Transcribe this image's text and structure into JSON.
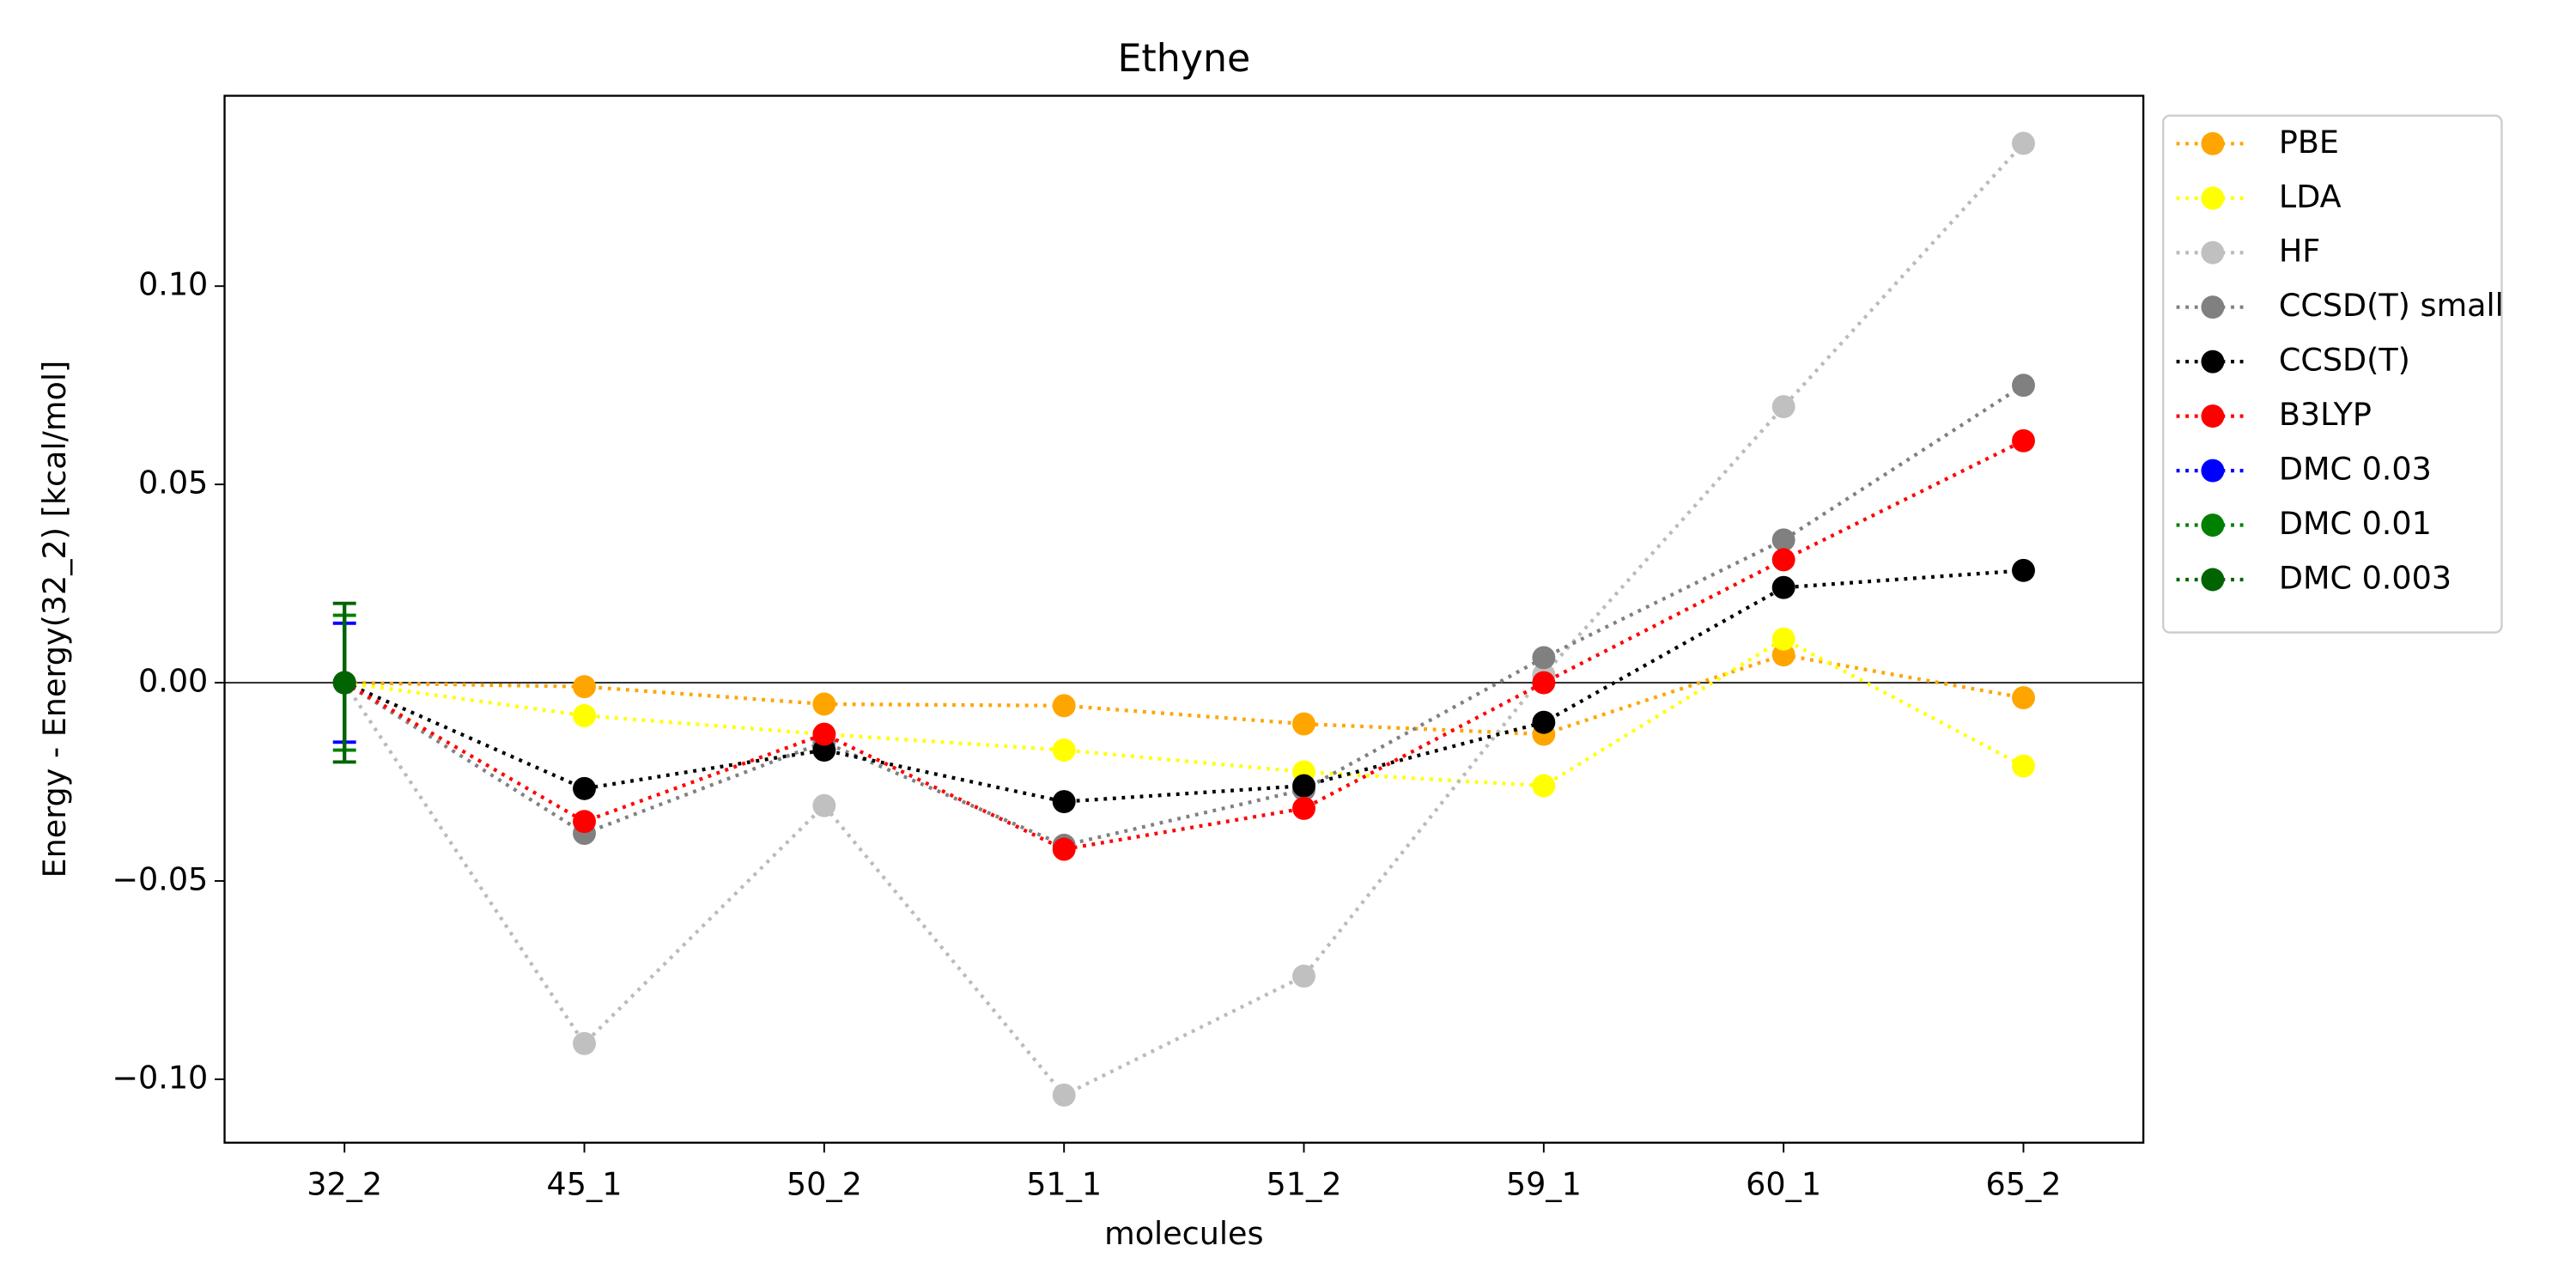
{
  "chart_data": {
    "type": "line",
    "title": "Ethyne",
    "xlabel": "molecules",
    "ylabel": "Energy - Energy(32_2) [kcal/mol]",
    "categories": [
      "32_2",
      "45_1",
      "50_2",
      "51_1",
      "51_2",
      "59_1",
      "60_1",
      "65_2"
    ],
    "ylim": [
      -0.116,
      0.148
    ],
    "yticks": [
      {
        "value": -0.1,
        "label": "−0.10"
      },
      {
        "value": -0.05,
        "label": "−0.05"
      },
      {
        "value": 0,
        "label": "0.00"
      },
      {
        "value": 0.05,
        "label": "0.05"
      },
      {
        "value": 0.1,
        "label": "0.10"
      }
    ],
    "hline": 0,
    "legend": "upper left outside",
    "series": [
      {
        "name": "PBE",
        "color": "#ffa500",
        "values": [
          0,
          -0.001,
          -0.0054,
          -0.0058,
          -0.0104,
          -0.013,
          0.007,
          -0.0038
        ]
      },
      {
        "name": "LDA",
        "color": "#ffff00",
        "values": [
          0,
          -0.0083,
          -0.013,
          -0.017,
          -0.0225,
          -0.026,
          0.011,
          -0.021
        ]
      },
      {
        "name": "HF",
        "color": "#c0c0c0",
        "values": [
          0,
          -0.091,
          -0.031,
          -0.104,
          -0.074,
          0.002,
          0.0696,
          0.136
        ]
      },
      {
        "name": "CCSD(T) small",
        "color": "#808080",
        "values": [
          0,
          -0.038,
          -0.015,
          -0.041,
          -0.027,
          0.0063,
          0.036,
          0.075
        ]
      },
      {
        "name": "CCSD(T)",
        "color": "#000000",
        "values": [
          0,
          -0.0267,
          -0.017,
          -0.03,
          -0.026,
          -0.01,
          0.024,
          0.0283
        ]
      },
      {
        "name": "B3LYP",
        "color": "#ff0000",
        "values": [
          0,
          -0.035,
          -0.013,
          -0.042,
          -0.0317,
          0,
          0.031,
          0.061
        ]
      },
      {
        "name": "DMC 0.03",
        "color": "#0000ff",
        "values": [
          0,
          null,
          null,
          null,
          null,
          null,
          null,
          null
        ],
        "errors": [
          0.015,
          null,
          null,
          null,
          null,
          null,
          null,
          null
        ]
      },
      {
        "name": "DMC 0.01",
        "color": "#008000",
        "values": [
          0,
          null,
          null,
          null,
          null,
          null,
          null,
          null
        ],
        "errors": [
          0.017,
          null,
          null,
          null,
          null,
          null,
          null,
          null
        ]
      },
      {
        "name": "DMC 0.003",
        "color": "#006400",
        "values": [
          0,
          null,
          null,
          null,
          null,
          null,
          null,
          null
        ],
        "errors": [
          0.02,
          null,
          null,
          null,
          null,
          null,
          null,
          null
        ]
      }
    ]
  }
}
